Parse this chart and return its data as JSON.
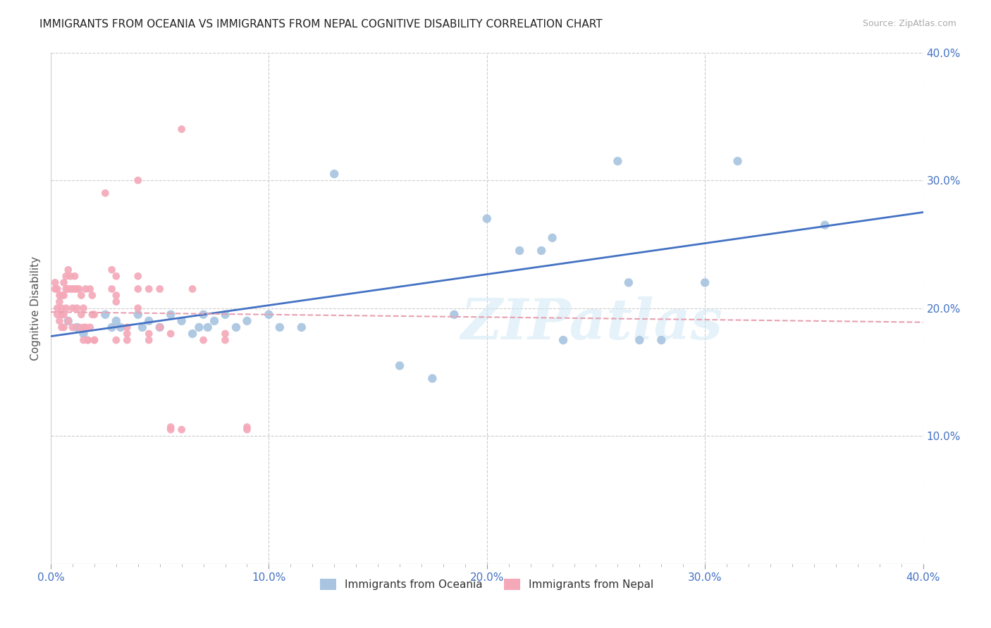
{
  "title": "IMMIGRANTS FROM OCEANIA VS IMMIGRANTS FROM NEPAL COGNITIVE DISABILITY CORRELATION CHART",
  "source": "Source: ZipAtlas.com",
  "ylabel": "Cognitive Disability",
  "xlim": [
    0.0,
    0.4
  ],
  "ylim": [
    0.0,
    0.4
  ],
  "xtick_labels": [
    "0.0%",
    "",
    "",
    "",
    "",
    "",
    "",
    "",
    "",
    "10.0%",
    "",
    "",
    "",
    "",
    "",
    "",
    "",
    "",
    "",
    "20.0%",
    "",
    "",
    "",
    "",
    "",
    "",
    "",
    "",
    "",
    "30.0%",
    "",
    "",
    "",
    "",
    "",
    "",
    "",
    "",
    "",
    "40.0%"
  ],
  "ytick_vals": [
    0.1,
    0.2,
    0.3,
    0.4
  ],
  "ytick_labels": [
    "10.0%",
    "20.0%",
    "30.0%",
    "40.0%"
  ],
  "watermark": "ZIPatlas",
  "oceania_color": "#a8c4e0",
  "nepal_color": "#f4a8b8",
  "oceania_line_color": "#4472c4",
  "nepal_line_color": "#f4a8b8",
  "title_color": "#222222",
  "tick_color": "#4472c4",
  "oceania_scatter": [
    [
      0.008,
      0.19
    ],
    [
      0.012,
      0.185
    ],
    [
      0.015,
      0.18
    ],
    [
      0.025,
      0.195
    ],
    [
      0.028,
      0.185
    ],
    [
      0.03,
      0.19
    ],
    [
      0.032,
      0.185
    ],
    [
      0.04,
      0.195
    ],
    [
      0.042,
      0.185
    ],
    [
      0.045,
      0.19
    ],
    [
      0.05,
      0.185
    ],
    [
      0.055,
      0.195
    ],
    [
      0.06,
      0.19
    ],
    [
      0.065,
      0.18
    ],
    [
      0.068,
      0.185
    ],
    [
      0.07,
      0.195
    ],
    [
      0.072,
      0.185
    ],
    [
      0.075,
      0.19
    ],
    [
      0.08,
      0.195
    ],
    [
      0.085,
      0.185
    ],
    [
      0.09,
      0.19
    ],
    [
      0.1,
      0.195
    ],
    [
      0.105,
      0.185
    ],
    [
      0.115,
      0.185
    ],
    [
      0.13,
      0.305
    ],
    [
      0.16,
      0.155
    ],
    [
      0.175,
      0.145
    ],
    [
      0.185,
      0.195
    ],
    [
      0.2,
      0.27
    ],
    [
      0.215,
      0.245
    ],
    [
      0.225,
      0.245
    ],
    [
      0.23,
      0.255
    ],
    [
      0.235,
      0.175
    ],
    [
      0.26,
      0.315
    ],
    [
      0.265,
      0.22
    ],
    [
      0.27,
      0.175
    ],
    [
      0.28,
      0.175
    ],
    [
      0.3,
      0.22
    ],
    [
      0.315,
      0.315
    ],
    [
      0.355,
      0.265
    ]
  ],
  "nepal_scatter": [
    [
      0.002,
      0.22
    ],
    [
      0.002,
      0.215
    ],
    [
      0.003,
      0.2
    ],
    [
      0.003,
      0.195
    ],
    [
      0.003,
      0.215
    ],
    [
      0.004,
      0.205
    ],
    [
      0.004,
      0.19
    ],
    [
      0.004,
      0.21
    ],
    [
      0.005,
      0.195
    ],
    [
      0.005,
      0.21
    ],
    [
      0.005,
      0.185
    ],
    [
      0.005,
      0.2
    ],
    [
      0.006,
      0.21
    ],
    [
      0.006,
      0.22
    ],
    [
      0.006,
      0.195
    ],
    [
      0.006,
      0.185
    ],
    [
      0.007,
      0.215
    ],
    [
      0.007,
      0.2
    ],
    [
      0.007,
      0.225
    ],
    [
      0.008,
      0.19
    ],
    [
      0.008,
      0.215
    ],
    [
      0.008,
      0.23
    ],
    [
      0.009,
      0.215
    ],
    [
      0.009,
      0.225
    ],
    [
      0.01,
      0.2
    ],
    [
      0.01,
      0.215
    ],
    [
      0.01,
      0.185
    ],
    [
      0.011,
      0.215
    ],
    [
      0.011,
      0.225
    ],
    [
      0.012,
      0.2
    ],
    [
      0.012,
      0.215
    ],
    [
      0.013,
      0.215
    ],
    [
      0.013,
      0.185
    ],
    [
      0.014,
      0.195
    ],
    [
      0.014,
      0.21
    ],
    [
      0.015,
      0.2
    ],
    [
      0.015,
      0.175
    ],
    [
      0.015,
      0.185
    ],
    [
      0.016,
      0.215
    ],
    [
      0.016,
      0.185
    ],
    [
      0.017,
      0.175
    ],
    [
      0.017,
      0.175
    ],
    [
      0.018,
      0.215
    ],
    [
      0.018,
      0.185
    ],
    [
      0.019,
      0.195
    ],
    [
      0.019,
      0.21
    ],
    [
      0.02,
      0.195
    ],
    [
      0.02,
      0.175
    ],
    [
      0.02,
      0.175
    ],
    [
      0.025,
      0.29
    ],
    [
      0.028,
      0.215
    ],
    [
      0.028,
      0.23
    ],
    [
      0.03,
      0.205
    ],
    [
      0.03,
      0.21
    ],
    [
      0.03,
      0.225
    ],
    [
      0.03,
      0.175
    ],
    [
      0.035,
      0.175
    ],
    [
      0.035,
      0.18
    ],
    [
      0.035,
      0.185
    ],
    [
      0.04,
      0.3
    ],
    [
      0.04,
      0.225
    ],
    [
      0.04,
      0.215
    ],
    [
      0.04,
      0.2
    ],
    [
      0.045,
      0.215
    ],
    [
      0.045,
      0.18
    ],
    [
      0.045,
      0.175
    ],
    [
      0.05,
      0.215
    ],
    [
      0.05,
      0.185
    ],
    [
      0.055,
      0.18
    ],
    [
      0.055,
      0.105
    ],
    [
      0.055,
      0.107
    ],
    [
      0.06,
      0.34
    ],
    [
      0.06,
      0.105
    ],
    [
      0.065,
      0.215
    ],
    [
      0.07,
      0.175
    ],
    [
      0.08,
      0.175
    ],
    [
      0.08,
      0.18
    ],
    [
      0.09,
      0.105
    ],
    [
      0.09,
      0.107
    ]
  ],
  "oceania_trendline": [
    [
      0.0,
      0.178
    ],
    [
      0.4,
      0.275
    ]
  ],
  "nepal_trendline": [
    [
      0.0,
      0.197
    ],
    [
      0.15,
      0.193
    ]
  ]
}
